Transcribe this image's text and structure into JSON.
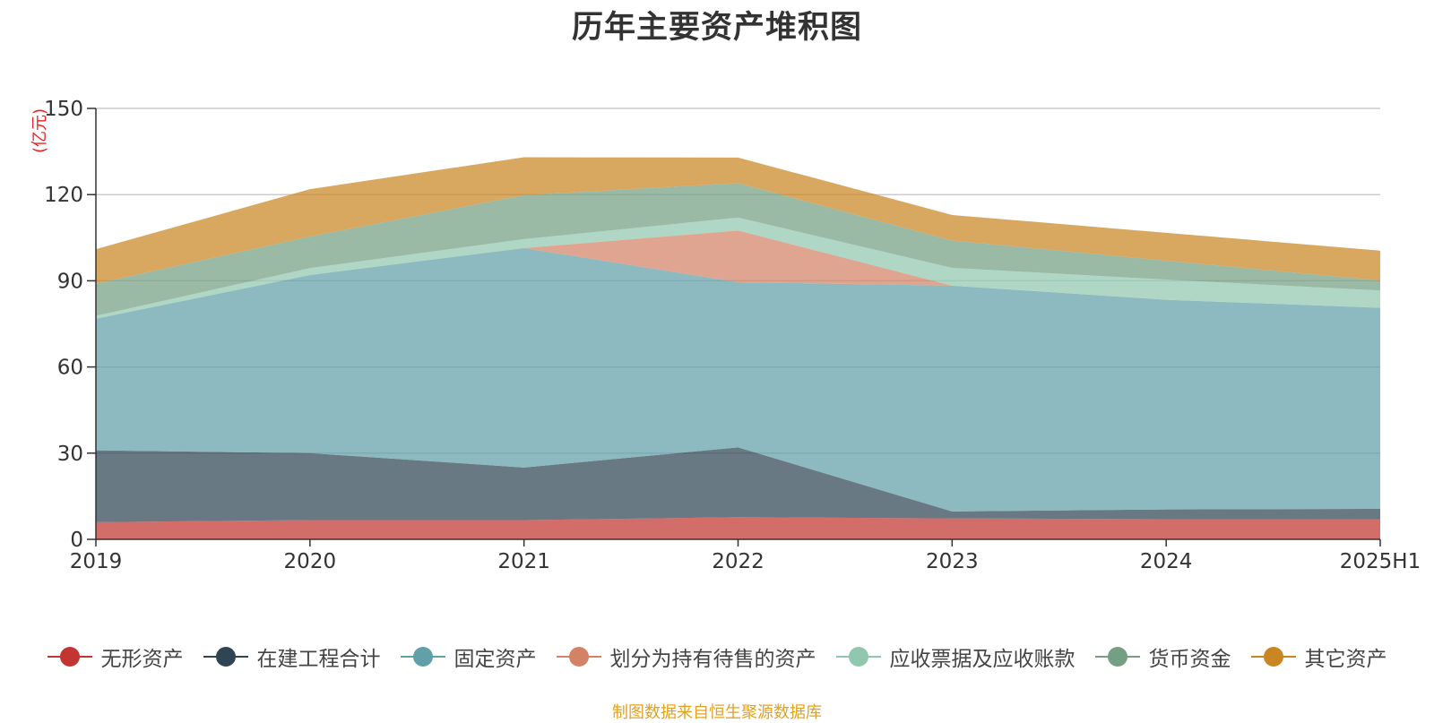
{
  "title": "历年主要资产堆积图",
  "source_note": "制图数据来自恒生聚源数据库",
  "chart_data": {
    "type": "area",
    "stacked": true,
    "title": "历年主要资产堆积图",
    "ylabel": "(亿元)",
    "xlabel": "",
    "ylim": [
      0,
      150
    ],
    "yticks": [
      0,
      30,
      60,
      90,
      120,
      150
    ],
    "grid": true,
    "legend_position": "bottom",
    "categories": [
      "2019",
      "2020",
      "2021",
      "2022",
      "2023",
      "2024",
      "2025H1"
    ],
    "series": [
      {
        "name": "无形资产",
        "color": "#c23531",
        "values": [
          6,
          6.7,
          6.7,
          7.7,
          7.3,
          7,
          7
        ]
      },
      {
        "name": "在建工程合计",
        "color": "#2f4554",
        "values": [
          25,
          23.3,
          18.3,
          24.3,
          2.4,
          3.4,
          3.6
        ]
      },
      {
        "name": "固定资产",
        "color": "#61a0a8",
        "values": [
          45.8,
          62,
          76.4,
          57.5,
          78.6,
          73,
          70
        ]
      },
      {
        "name": "划分为持有待售的资产",
        "color": "#d48265",
        "values": [
          0,
          0,
          0,
          18,
          0,
          0,
          0
        ]
      },
      {
        "name": "应收票据及应收账款",
        "color": "#91c7ae",
        "values": [
          1,
          2.4,
          3.1,
          4.5,
          6.2,
          7,
          6
        ]
      },
      {
        "name": "货币资金",
        "color": "#749f83",
        "values": [
          11.2,
          11,
          15.3,
          12,
          9.5,
          6.6,
          3.5
        ]
      },
      {
        "name": "其它资产",
        "color": "#ca8622",
        "values": [
          12,
          16.5,
          13.2,
          8.9,
          8.9,
          9.7,
          10.4
        ]
      }
    ]
  }
}
